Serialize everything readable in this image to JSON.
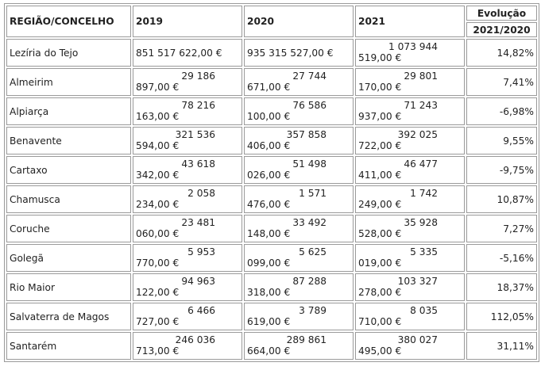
{
  "headers": {
    "region": "REGIÃO/CONCELHO",
    "y2019": "2019",
    "y2020": "2020",
    "y2021": "2021",
    "evolution": "Evolução",
    "evolution_period": "2021/2020"
  },
  "rows": [
    {
      "name": "Lezíria do Tejo",
      "v2019": [
        "851 517 622,00 €"
      ],
      "v2020": [
        "935 315 527,00 €"
      ],
      "v2021": [
        "1 073 944",
        "519,00 €"
      ],
      "evo": "14,82%"
    },
    {
      "name": "Almeirim",
      "v2019": [
        "29 186",
        "897,00 €"
      ],
      "v2020": [
        "27 744",
        "671,00 €"
      ],
      "v2021": [
        "29 801",
        "170,00 €"
      ],
      "evo": "7,41%"
    },
    {
      "name": "Alpiarça",
      "v2019": [
        "78 216",
        "163,00 €"
      ],
      "v2020": [
        "76 586",
        "100,00 €"
      ],
      "v2021": [
        "71 243",
        "937,00 €"
      ],
      "evo": "-6,98%"
    },
    {
      "name": "Benavente",
      "v2019": [
        "321 536",
        "594,00 €"
      ],
      "v2020": [
        "357 858",
        "406,00 €"
      ],
      "v2021": [
        "392 025",
        "722,00 €"
      ],
      "evo": "9,55%"
    },
    {
      "name": "Cartaxo",
      "v2019": [
        "43 618",
        "342,00 €"
      ],
      "v2020": [
        "51 498",
        "026,00 €"
      ],
      "v2021": [
        "46 477",
        "411,00 €"
      ],
      "evo": "-9,75%"
    },
    {
      "name": "Chamusca",
      "v2019": [
        "2 058",
        "234,00 €"
      ],
      "v2020": [
        "1 571",
        "476,00 €"
      ],
      "v2021": [
        "1 742",
        "249,00 €"
      ],
      "evo": "10,87%"
    },
    {
      "name": "Coruche",
      "v2019": [
        "23 481",
        "060,00 €"
      ],
      "v2020": [
        "33 492",
        "148,00 €"
      ],
      "v2021": [
        "35 928",
        "528,00 €"
      ],
      "evo": "7,27%"
    },
    {
      "name": "Golegã",
      "v2019": [
        "5 953",
        "770,00 €"
      ],
      "v2020": [
        "5 625",
        "099,00 €"
      ],
      "v2021": [
        "5 335",
        "019,00 €"
      ],
      "evo": "-5,16%"
    },
    {
      "name": "Rio Maior",
      "v2019": [
        "94 963",
        "122,00 €"
      ],
      "v2020": [
        "87 288",
        "318,00 €"
      ],
      "v2021": [
        "103 327",
        "278,00 €"
      ],
      "evo": "18,37%"
    },
    {
      "name": "Salvaterra de Magos",
      "v2019": [
        "6 466",
        "727,00 €"
      ],
      "v2020": [
        "3 789",
        "619,00 €"
      ],
      "v2021": [
        "8 035",
        "710,00 €"
      ],
      "evo": "112,05%"
    },
    {
      "name": "Santarém",
      "v2019": [
        "246 036",
        "713,00 €"
      ],
      "v2020": [
        "289 861",
        "664,00 €"
      ],
      "v2021": [
        "380 027",
        "495,00 €"
      ],
      "evo": "31,11%"
    }
  ]
}
